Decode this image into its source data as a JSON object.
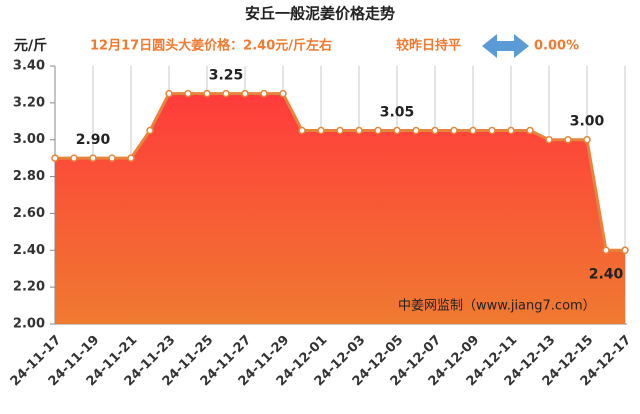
{
  "chart_data": {
    "type": "line",
    "title": "安丘一般泥姜价格走势",
    "y_unit": "元/斤",
    "info": "12月17日圆头大姜价格：2.40元/斤左右",
    "change_text": "较昨日持平",
    "change_pct": "0.00%",
    "watermark": "中姜网监制（www.jiang7.com）",
    "categories": [
      "24-11-17",
      null,
      "24-11-19",
      null,
      "24-11-21",
      null,
      "24-11-23",
      null,
      "24-11-25",
      null,
      "24-11-27",
      null,
      "24-11-29",
      null,
      "24-12-01",
      null,
      "24-12-03",
      null,
      "24-12-05",
      null,
      "24-12-07",
      null,
      "24-12-09",
      null,
      "24-12-11",
      null,
      "24-12-13",
      null,
      "24-12-15",
      null,
      "24-12-17"
    ],
    "values": [
      2.9,
      2.9,
      2.9,
      2.9,
      2.9,
      3.05,
      3.25,
      3.25,
      3.25,
      3.25,
      3.25,
      3.25,
      3.25,
      3.05,
      3.05,
      3.05,
      3.05,
      3.05,
      3.05,
      3.05,
      3.05,
      3.05,
      3.05,
      3.05,
      3.05,
      3.05,
      3.0,
      3.0,
      3.0,
      2.4,
      2.4
    ],
    "value_labels": [
      null,
      null,
      "2.90",
      null,
      null,
      null,
      null,
      null,
      null,
      "3.25",
      null,
      null,
      null,
      null,
      null,
      null,
      null,
      null,
      "3.05",
      null,
      null,
      null,
      null,
      null,
      null,
      null,
      null,
      null,
      "3.00",
      "2.40",
      null
    ],
    "color": "#e8833a",
    "ylim": [
      2.0,
      3.4
    ],
    "yticks": [
      {
        "value": 2.0,
        "label": "2.00"
      },
      {
        "value": 2.2,
        "label": "2.20"
      },
      {
        "value": 2.4,
        "label": "2.40"
      },
      {
        "value": 2.6,
        "label": "2.60"
      },
      {
        "value": 2.8,
        "label": "2.80"
      },
      {
        "value": 3.0,
        "label": "3.00"
      },
      {
        "value": 3.2,
        "label": "3.20"
      },
      {
        "value": 3.4,
        "label": "3.40"
      }
    ],
    "grid": true
  }
}
